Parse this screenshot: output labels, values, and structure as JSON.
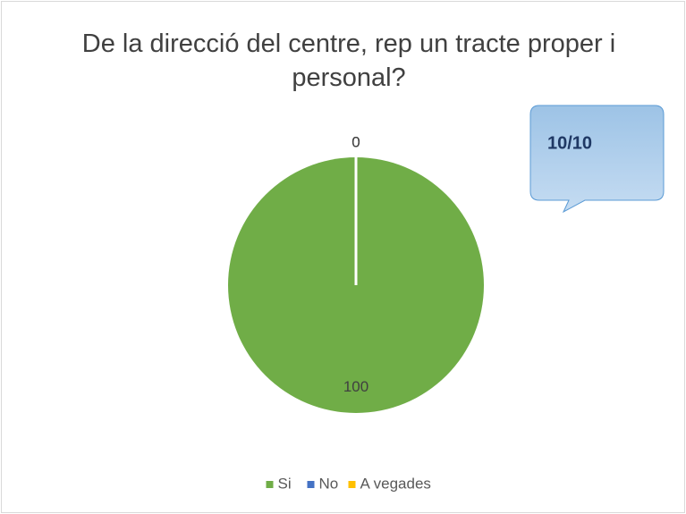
{
  "chart_data": {
    "type": "pie",
    "title": "De la direcció del centre, rep un tracte proper i personal?",
    "categories": [
      "Si",
      "No",
      "A vegades"
    ],
    "values": [
      100,
      0,
      0
    ],
    "colors": [
      "#70ad47",
      "#4472c4",
      "#ffc000"
    ],
    "annotation": "10/10",
    "legend": "bottom"
  }
}
